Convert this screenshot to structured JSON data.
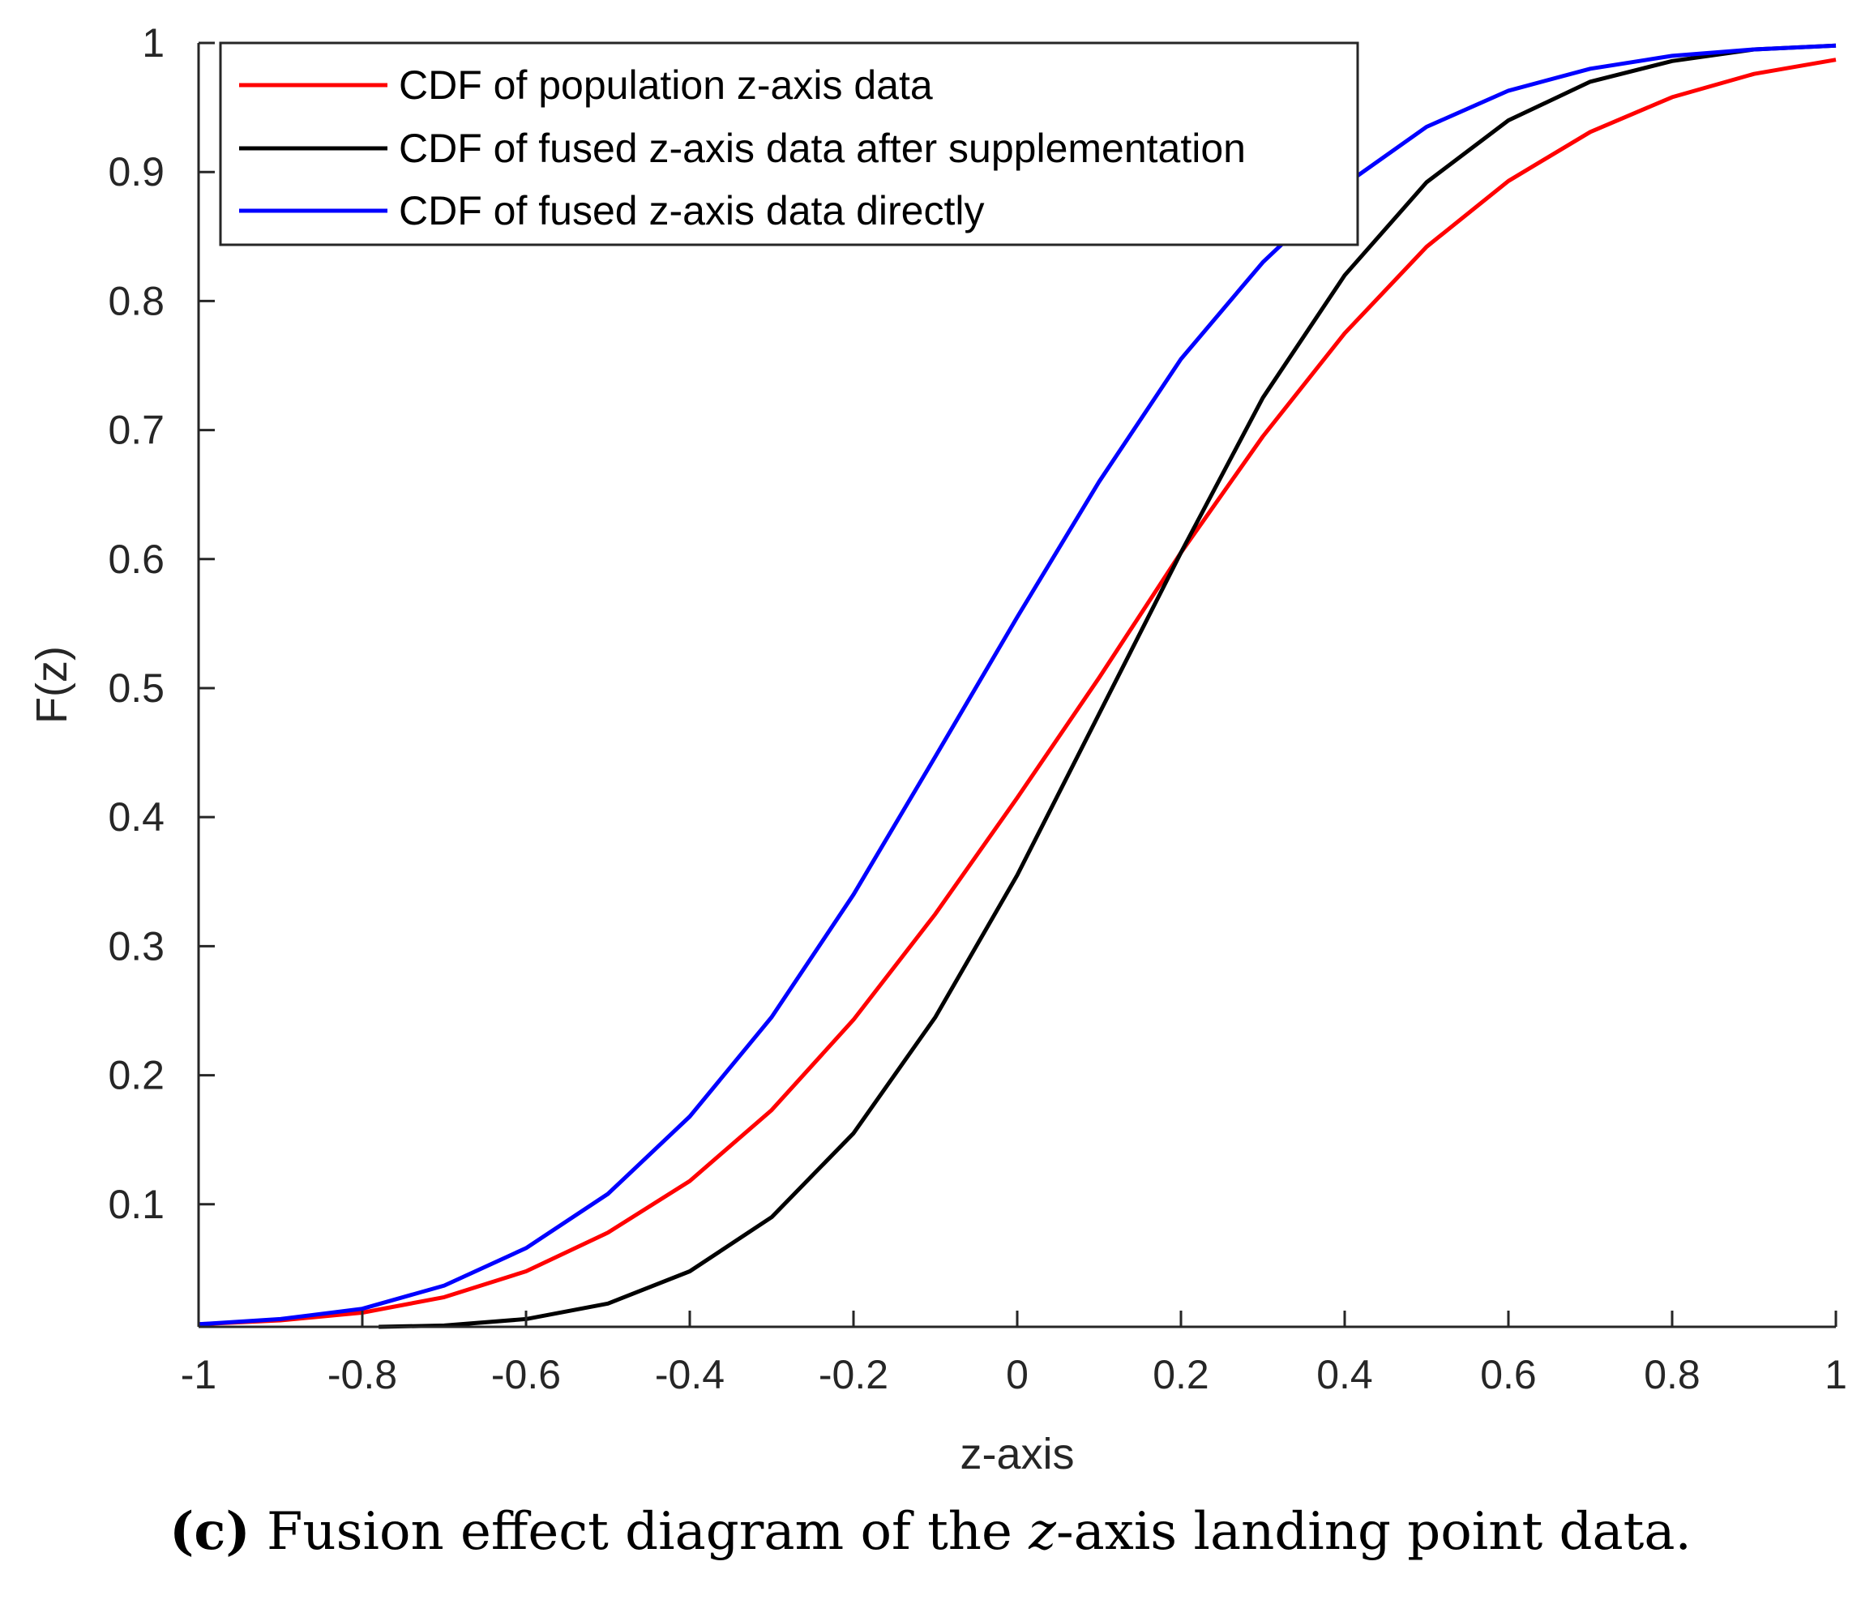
{
  "chart_data": {
    "type": "line",
    "xlabel": "z-axis",
    "ylabel": "F(z)",
    "xlim": [
      -1,
      1
    ],
    "ylim": [
      0.005,
      1
    ],
    "xticks": [
      -1,
      -0.8,
      -0.6,
      -0.4,
      -0.2,
      0,
      0.2,
      0.4,
      0.6,
      0.8,
      1
    ],
    "xtick_labels": [
      "-1",
      "-0.8",
      "-0.6",
      "-0.4",
      "-0.2",
      "0",
      "0.2",
      "0.4",
      "0.6",
      "0.8",
      "1"
    ],
    "yticks": [
      0.1,
      0.2,
      0.3,
      0.4,
      0.5,
      0.6,
      0.7,
      0.8,
      0.9,
      1
    ],
    "ytick_labels": [
      "0.1",
      "0.2",
      "0.3",
      "0.4",
      "0.5",
      "0.6",
      "0.7",
      "0.8",
      "0.9",
      "1"
    ],
    "grid": false,
    "legend_position": "top-left",
    "series": [
      {
        "name": "CDF of population z-axis data",
        "color": "#ff0000",
        "x": [
          -1,
          -0.9,
          -0.8,
          -0.7,
          -0.6,
          -0.5,
          -0.4,
          -0.3,
          -0.2,
          -0.1,
          0,
          0.1,
          0.2,
          0.3,
          0.4,
          0.5,
          0.6,
          0.7,
          0.8,
          0.9,
          1
        ],
        "y": [
          0.007,
          0.01,
          0.016,
          0.028,
          0.048,
          0.078,
          0.118,
          0.173,
          0.243,
          0.325,
          0.415,
          0.508,
          0.605,
          0.695,
          0.775,
          0.842,
          0.893,
          0.931,
          0.958,
          0.976,
          0.987
        ]
      },
      {
        "name": "CDF of fused z-axis data after supplementation",
        "color": "#000000",
        "x": [
          -0.78,
          -0.7,
          -0.6,
          -0.5,
          -0.4,
          -0.3,
          -0.2,
          -0.1,
          0,
          0.1,
          0.2,
          0.3,
          0.4,
          0.5,
          0.6,
          0.7,
          0.8,
          0.9,
          1
        ],
        "y": [
          0.005,
          0.006,
          0.011,
          0.023,
          0.048,
          0.09,
          0.155,
          0.245,
          0.355,
          0.48,
          0.605,
          0.725,
          0.82,
          0.892,
          0.94,
          0.97,
          0.986,
          0.995,
          0.998
        ]
      },
      {
        "name": "CDF of fused z-axis data directly",
        "color": "#0000ff",
        "x": [
          -1,
          -0.9,
          -0.8,
          -0.7,
          -0.6,
          -0.5,
          -0.4,
          -0.3,
          -0.2,
          -0.1,
          0,
          0.1,
          0.2,
          0.3,
          0.4,
          0.5,
          0.6,
          0.7,
          0.8,
          0.9,
          1
        ],
        "y": [
          0.007,
          0.011,
          0.019,
          0.037,
          0.066,
          0.108,
          0.168,
          0.245,
          0.34,
          0.447,
          0.555,
          0.66,
          0.755,
          0.83,
          0.89,
          0.935,
          0.963,
          0.98,
          0.99,
          0.995,
          0.998
        ]
      }
    ]
  },
  "caption": {
    "label": "(c)",
    "text_before": " Fusion effect diagram of the ",
    "variable": "z",
    "text_after": "-axis landing point data."
  }
}
